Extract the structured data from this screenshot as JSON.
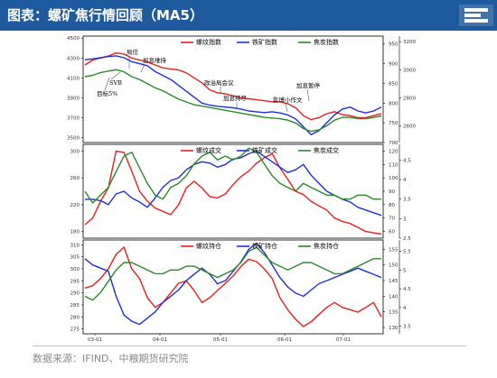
{
  "header": {
    "title": "图表：螺矿焦行情回顾（MA5）"
  },
  "footer": {
    "source": "数据来源：IFIND、中粮期货研究院"
  },
  "colors": {
    "header_bg": "#1f5a9e",
    "rebar": "#e8201f",
    "iron": "#1f2fd6",
    "coke": "#2a8a2a",
    "annotation": "#555555"
  },
  "chart_data": [
    {
      "type": "line",
      "panel": "index",
      "legend": [
        "螺纹指数",
        "铁矿指数",
        "焦炭指数"
      ],
      "y_left_ticks": [
        3500,
        3700,
        3900,
        4100,
        4300,
        4500
      ],
      "y_left_lim": [
        3450,
        4520
      ],
      "y_right1_ticks": [
        700,
        750,
        800,
        850,
        900,
        950
      ],
      "y_right1_lim": [
        700,
        970
      ],
      "y_right2_ticks": [
        2600,
        2800,
        3000,
        3200
      ],
      "y_right2_lim": [
        2480,
        3240
      ],
      "series": [
        {
          "name": "螺纹指数",
          "axis": "left",
          "values": [
            4230,
            4280,
            4300,
            4320,
            4350,
            4340,
            4300,
            4280,
            4260,
            4230,
            4200,
            4190,
            4180,
            4150,
            4100,
            4050,
            3980,
            3950,
            3940,
            3920,
            3900,
            3890,
            3880,
            3870,
            3860,
            3860,
            3840,
            3800,
            3720,
            3680,
            3700,
            3740,
            3760,
            3730,
            3720,
            3700,
            3700,
            3720,
            3740
          ]
        },
        {
          "name": "铁矿指数",
          "axis": "right1",
          "values": [
            910,
            912,
            915,
            918,
            920,
            915,
            905,
            900,
            895,
            880,
            870,
            860,
            845,
            830,
            815,
            800,
            795,
            792,
            790,
            788,
            785,
            780,
            778,
            776,
            778,
            775,
            770,
            760,
            740,
            720,
            730,
            750,
            770,
            785,
            790,
            780,
            775,
            780,
            790
          ]
        },
        {
          "name": "焦炭指数",
          "axis": "right2",
          "values": [
            2950,
            2960,
            2980,
            2990,
            3000,
            2985,
            2950,
            2930,
            2900,
            2870,
            2850,
            2820,
            2790,
            2770,
            2750,
            2740,
            2730,
            2720,
            2710,
            2700,
            2690,
            2680,
            2670,
            2660,
            2655,
            2650,
            2640,
            2620,
            2580,
            2560,
            2570,
            2600,
            2640,
            2660,
            2660,
            2650,
            2650,
            2660,
            2670
          ]
        }
      ],
      "annotations": [
        "局信",
        "SVB",
        "加息维持",
        "目标5%",
        "政治局会议",
        "加息持尽",
        "影博小作文",
        "加息暂停"
      ]
    },
    {
      "type": "line",
      "panel": "volume",
      "legend": [
        "螺纹成交",
        "铁矿成交",
        "焦炭成交"
      ],
      "y_left_ticks": [
        180,
        220,
        260,
        300
      ],
      "y_left_lim": [
        170,
        310
      ],
      "y_right1_ticks": [
        60,
        70,
        80,
        90,
        100,
        110,
        120
      ],
      "y_right1_lim": [
        55,
        125
      ],
      "y_right2_ticks": [
        2.5,
        3.0,
        3.5,
        4.0,
        4.5
      ],
      "y_right2_lim": [
        2.5,
        4.9
      ],
      "series": [
        {
          "name": "螺纹成交",
          "axis": "left",
          "values": [
            190,
            200,
            225,
            245,
            300,
            298,
            270,
            240,
            225,
            215,
            210,
            205,
            220,
            245,
            255,
            245,
            232,
            230,
            236,
            250,
            262,
            270,
            282,
            290,
            296,
            275,
            258,
            240,
            235,
            225,
            218,
            212,
            200,
            195,
            192,
            186,
            180,
            178,
            176
          ]
        },
        {
          "name": "铁矿成交",
          "axis": "right1",
          "values": [
            84,
            84,
            83,
            80,
            88,
            90,
            85,
            82,
            78,
            85,
            93,
            98,
            100,
            106,
            110,
            112,
            111,
            108,
            110,
            114,
            115,
            118,
            120,
            116,
            112,
            108,
            104,
            106,
            110,
            102,
            96,
            90,
            87,
            84,
            82,
            78,
            76,
            74,
            72
          ]
        },
        {
          "name": "焦炭成交",
          "axis": "right2",
          "values": [
            3.7,
            3.4,
            3.6,
            3.8,
            4.2,
            4.6,
            4.7,
            4.3,
            3.9,
            3.6,
            3.5,
            3.8,
            3.9,
            4.1,
            4.4,
            4.6,
            4.7,
            4.5,
            4.6,
            4.5,
            4.6,
            4.8,
            4.7,
            4.4,
            4.1,
            3.9,
            3.8,
            3.7,
            3.9,
            3.8,
            3.7,
            3.6,
            3.6,
            3.5,
            3.5,
            3.6,
            3.6,
            3.5,
            3.5
          ]
        }
      ]
    },
    {
      "type": "line",
      "panel": "open_interest",
      "legend": [
        "螺纹持仓",
        "铁矿持仓",
        "焦炭持仓"
      ],
      "y_left_ticks": [
        275,
        280,
        285,
        290,
        295,
        300,
        305,
        310
      ],
      "y_left_lim": [
        273,
        312
      ],
      "y_right1_ticks": [
        130,
        135,
        140,
        145,
        150,
        155
      ],
      "y_right1_lim": [
        128,
        158
      ],
      "y_right2_ticks": [
        3.5,
        4.0,
        4.5,
        5.0,
        5.5
      ],
      "y_right2_lim": [
        3.3,
        5.8
      ],
      "series": [
        {
          "name": "螺纹持仓",
          "axis": "left",
          "values": [
            292,
            293,
            296,
            300,
            306,
            309,
            300,
            296,
            288,
            284,
            286,
            290,
            294,
            295,
            291,
            286,
            288,
            291,
            294,
            297,
            301,
            304,
            303,
            300,
            296,
            288,
            283,
            279,
            276,
            278,
            281,
            284,
            286,
            284,
            283,
            282,
            284,
            286,
            280
          ]
        },
        {
          "name": "铁矿持仓",
          "axis": "right1",
          "values": [
            152,
            150,
            149,
            148,
            140,
            134,
            132,
            131,
            133,
            135,
            138,
            140,
            142,
            145,
            147,
            149,
            147,
            144,
            145,
            148,
            151,
            155,
            157,
            154,
            150,
            146,
            143,
            141,
            140,
            142,
            144,
            145,
            146,
            147,
            148,
            149,
            148,
            147,
            146
          ]
        },
        {
          "name": "焦炭持仓",
          "axis": "right2",
          "values": [
            4.3,
            4.2,
            4.4,
            4.7,
            5.0,
            5.2,
            5.2,
            5.1,
            5.0,
            4.9,
            4.9,
            5.0,
            5.0,
            5.1,
            5.1,
            5.0,
            4.9,
            4.8,
            4.9,
            5.0,
            5.2,
            5.5,
            5.6,
            5.4,
            5.2,
            5.1,
            5.0,
            5.1,
            5.2,
            5.2,
            5.1,
            5.0,
            4.9,
            4.9,
            5.0,
            5.1,
            5.2,
            5.3,
            5.3
          ]
        }
      ]
    }
  ],
  "x_labels": [
    "03-01",
    "04-01",
    "05-01",
    "06-01",
    "07-01"
  ]
}
